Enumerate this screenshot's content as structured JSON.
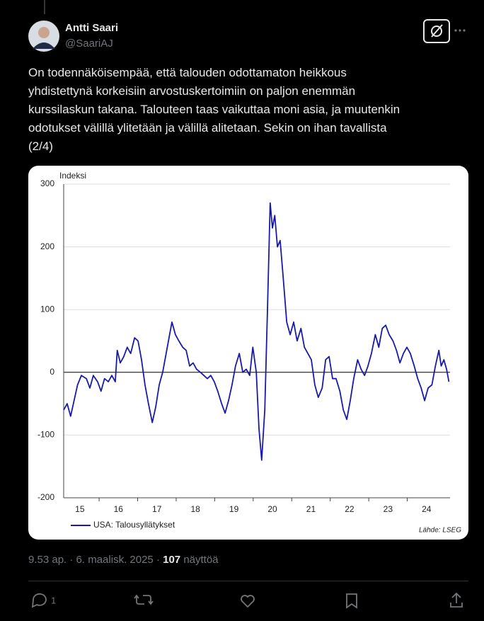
{
  "tweet": {
    "name": "Antti Saari",
    "handle": "@SaariAJ",
    "text_lines": [
      "On todennäköisempää, että talouden odottamaton heikkous",
      "yhdistettynä korkeisiin arvostuskertoimiin on paljon enemmän",
      "kurssilaskun takana. Talouteen taas vaikuttaa moni asia, ja muutenkin",
      "odotukset välillä ylitetään ja välillä alitetaan. Sekin on ihan tavallista",
      "(2/4)"
    ],
    "timestamp": "9.53 ap. · 6. maalisk. 2025 ·",
    "views": "107",
    "views_label": "näyttöä",
    "reply_count": "1"
  },
  "chart_data": {
    "type": "line",
    "ylabel": "Indeksi",
    "source": "Lähde: LSEG",
    "x": [
      2015.08,
      2015.17,
      2015.26,
      2015.35,
      2015.44,
      2015.54,
      2015.67,
      2015.76,
      2015.85,
      2015.96,
      2016.05,
      2016.14,
      2016.24,
      2016.33,
      2016.42,
      2016.47,
      2016.55,
      2016.64,
      2016.73,
      2016.82,
      2016.92,
      2017.01,
      2017.1,
      2017.19,
      2017.28,
      2017.38,
      2017.47,
      2017.56,
      2017.65,
      2017.74,
      2017.83,
      2017.89,
      2017.98,
      2018.07,
      2018.17,
      2018.26,
      2018.35,
      2018.44,
      2018.53,
      2018.63,
      2018.72,
      2018.81,
      2018.9,
      2018.99,
      2019.08,
      2019.18,
      2019.27,
      2019.36,
      2019.45,
      2019.54,
      2019.64,
      2019.73,
      2019.82,
      2019.91,
      2019.99,
      2020.08,
      2020.15,
      2020.22,
      2020.3,
      2020.37,
      2020.44,
      2020.5,
      2020.56,
      2020.63,
      2020.7,
      2020.78,
      2020.87,
      2020.96,
      2021.05,
      2021.14,
      2021.24,
      2021.33,
      2021.42,
      2021.51,
      2021.6,
      2021.69,
      2021.79,
      2021.88,
      2021.97,
      2022.06,
      2022.15,
      2022.25,
      2022.34,
      2022.43,
      2022.52,
      2022.61,
      2022.71,
      2022.8,
      2022.89,
      2022.98,
      2023.07,
      2023.17,
      2023.26,
      2023.35,
      2023.44,
      2023.53,
      2023.63,
      2023.72,
      2023.81,
      2023.9,
      2023.99,
      2024.08,
      2024.18,
      2024.27,
      2024.36,
      2024.45,
      2024.54,
      2024.64,
      2024.73,
      2024.82,
      2024.88,
      2024.95,
      2025.02,
      2025.08
    ],
    "series": [
      {
        "name": "USA: Talousyllätykset",
        "color": "#1a1aa6",
        "values": [
          -60,
          -50,
          -70,
          -45,
          -20,
          -5,
          -10,
          -25,
          -5,
          -15,
          -30,
          -10,
          -15,
          -5,
          -15,
          35,
          15,
          25,
          40,
          30,
          55,
          50,
          20,
          -20,
          -50,
          -80,
          -55,
          -20,
          0,
          30,
          60,
          80,
          60,
          50,
          40,
          35,
          10,
          15,
          5,
          0,
          -5,
          -10,
          -5,
          -15,
          -30,
          -50,
          -65,
          -45,
          -20,
          10,
          30,
          0,
          5,
          -5,
          40,
          0,
          -90,
          -140,
          -60,
          100,
          270,
          230,
          250,
          200,
          210,
          150,
          80,
          60,
          80,
          50,
          70,
          40,
          30,
          20,
          -20,
          -40,
          -25,
          20,
          25,
          -10,
          -10,
          -30,
          -60,
          -75,
          -45,
          -10,
          20,
          5,
          -5,
          10,
          30,
          60,
          40,
          70,
          75,
          60,
          50,
          35,
          15,
          30,
          40,
          30,
          10,
          -10,
          -25,
          -45,
          -25,
          -20,
          10,
          35,
          10,
          20,
          5,
          -15
        ]
      }
    ],
    "xlim": [
      2015.08,
      2025.11
    ],
    "ylim": [
      -200,
      300
    ],
    "yticks": [
      -200,
      -100,
      0,
      100,
      200,
      300
    ],
    "xticks": [
      {
        "value": 2015.5,
        "label": "15"
      },
      {
        "value": 2016.5,
        "label": "16"
      },
      {
        "value": 2017.5,
        "label": "17"
      },
      {
        "value": 2018.5,
        "label": "18"
      },
      {
        "value": 2019.5,
        "label": "19"
      },
      {
        "value": 2020.5,
        "label": "20"
      },
      {
        "value": 2021.5,
        "label": "21"
      },
      {
        "value": 2022.5,
        "label": "22"
      },
      {
        "value": 2023.5,
        "label": "23"
      },
      {
        "value": 2024.5,
        "label": "24"
      }
    ],
    "xminorticks": [
      2016,
      2017,
      2018,
      2019,
      2020,
      2021,
      2022,
      2023,
      2024
    ],
    "grid": true,
    "legend": "bottom-left"
  }
}
